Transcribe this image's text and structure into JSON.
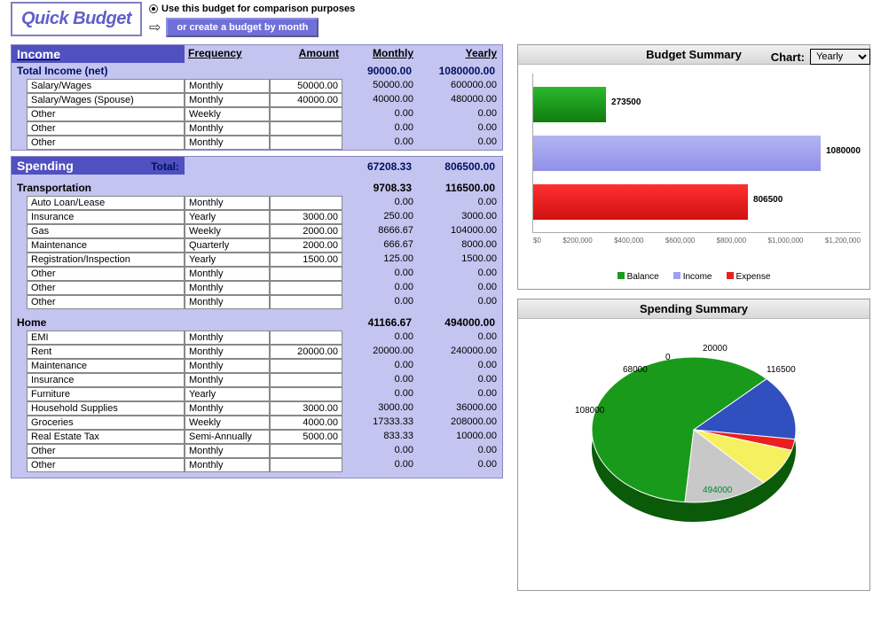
{
  "header": {
    "logo": "Quick Budget",
    "radio_label": "Use this budget for comparison purposes",
    "create_btn": "or create a budget by month",
    "chart_label": "Chart:",
    "chart_options": [
      "Yearly"
    ],
    "chart_selected": "Yearly"
  },
  "income": {
    "title": "Income",
    "col_headers": [
      "Frequency",
      "Amount",
      "Monthly",
      "Yearly"
    ],
    "total_label": "Total Income (net)",
    "total_monthly": "90000.00",
    "total_yearly": "1080000.00",
    "rows": [
      {
        "label": "Salary/Wages",
        "freq": "Monthly",
        "amount": "50000.00",
        "monthly": "50000.00",
        "yearly": "600000.00"
      },
      {
        "label": "Salary/Wages (Spouse)",
        "freq": "Monthly",
        "amount": "40000.00",
        "monthly": "40000.00",
        "yearly": "480000.00"
      },
      {
        "label": "Other",
        "freq": "Weekly",
        "amount": "",
        "monthly": "0.00",
        "yearly": "0.00"
      },
      {
        "label": "Other",
        "freq": "Monthly",
        "amount": "",
        "monthly": "0.00",
        "yearly": "0.00"
      },
      {
        "label": "Other",
        "freq": "Monthly",
        "amount": "",
        "monthly": "0.00",
        "yearly": "0.00"
      }
    ]
  },
  "spending": {
    "title": "Spending",
    "total_label": "Total:",
    "total_monthly": "67208.33",
    "total_yearly": "806500.00",
    "categories": [
      {
        "name": "Transportation",
        "monthly": "9708.33",
        "yearly": "116500.00",
        "rows": [
          {
            "label": "Auto Loan/Lease",
            "freq": "Monthly",
            "amount": "",
            "monthly": "0.00",
            "yearly": "0.00"
          },
          {
            "label": "Insurance",
            "freq": "Yearly",
            "amount": "3000.00",
            "monthly": "250.00",
            "yearly": "3000.00"
          },
          {
            "label": "Gas",
            "freq": "Weekly",
            "amount": "2000.00",
            "monthly": "8666.67",
            "yearly": "104000.00"
          },
          {
            "label": "Maintenance",
            "freq": "Quarterly",
            "amount": "2000.00",
            "monthly": "666.67",
            "yearly": "8000.00"
          },
          {
            "label": "Registration/Inspection",
            "freq": "Yearly",
            "amount": "1500.00",
            "monthly": "125.00",
            "yearly": "1500.00"
          },
          {
            "label": "Other",
            "freq": "Monthly",
            "amount": "",
            "monthly": "0.00",
            "yearly": "0.00"
          },
          {
            "label": "Other",
            "freq": "Monthly",
            "amount": "",
            "monthly": "0.00",
            "yearly": "0.00"
          },
          {
            "label": "Other",
            "freq": "Monthly",
            "amount": "",
            "monthly": "0.00",
            "yearly": "0.00"
          }
        ]
      },
      {
        "name": "Home",
        "monthly": "41166.67",
        "yearly": "494000.00",
        "rows": [
          {
            "label": "EMI",
            "freq": "Monthly",
            "amount": "",
            "monthly": "0.00",
            "yearly": "0.00"
          },
          {
            "label": "Rent",
            "freq": "Monthly",
            "amount": "20000.00",
            "monthly": "20000.00",
            "yearly": "240000.00"
          },
          {
            "label": "Maintenance",
            "freq": "Monthly",
            "amount": "",
            "monthly": "0.00",
            "yearly": "0.00"
          },
          {
            "label": "Insurance",
            "freq": "Monthly",
            "amount": "",
            "monthly": "0.00",
            "yearly": "0.00"
          },
          {
            "label": "Furniture",
            "freq": "Yearly",
            "amount": "",
            "monthly": "0.00",
            "yearly": "0.00"
          },
          {
            "label": "Household Supplies",
            "freq": "Monthly",
            "amount": "3000.00",
            "monthly": "3000.00",
            "yearly": "36000.00"
          },
          {
            "label": "Groceries",
            "freq": "Weekly",
            "amount": "4000.00",
            "monthly": "17333.33",
            "yearly": "208000.00"
          },
          {
            "label": "Real Estate Tax",
            "freq": "Semi-Annually",
            "amount": "5000.00",
            "monthly": "833.33",
            "yearly": "10000.00"
          },
          {
            "label": "Other",
            "freq": "Monthly",
            "amount": "",
            "monthly": "0.00",
            "yearly": "0.00"
          },
          {
            "label": "Other",
            "freq": "Monthly",
            "amount": "",
            "monthly": "0.00",
            "yearly": "0.00"
          }
        ]
      }
    ]
  },
  "budget_chart": {
    "title": "Budget Summary",
    "max": 1200000,
    "bars": [
      {
        "label": "273500",
        "value": 273500,
        "color": "#1a9a1a",
        "class": "bar-g"
      },
      {
        "label": "1080000",
        "value": 1080000,
        "color": "#a0a0f0",
        "class": "bar-b"
      },
      {
        "label": "806500",
        "value": 806500,
        "color": "#e82020",
        "class": "bar-r"
      }
    ],
    "xticks": [
      "$0",
      "$200,000",
      "$400,000",
      "$600,000",
      "$800,000",
      "$1,000,000",
      "$1,200,000"
    ],
    "legend": [
      {
        "label": "Balance",
        "color": "#1a9a1a"
      },
      {
        "label": "Income",
        "color": "#a0a0f0"
      },
      {
        "label": "Expense",
        "color": "#e82020"
      }
    ]
  },
  "spending_chart": {
    "title": "Spending Summary",
    "slices": [
      {
        "label": "494000",
        "value": 494000,
        "color": "#1a9a1a"
      },
      {
        "label": "116500",
        "value": 116500,
        "color": "#3050c0"
      },
      {
        "label": "20000",
        "value": 20000,
        "color": "#e82020"
      },
      {
        "label": "0",
        "value": 0,
        "color": "#ffa030"
      },
      {
        "label": "68000",
        "value": 68000,
        "color": "#f5f060"
      },
      {
        "label": "108000",
        "value": 108000,
        "color": "#c8c8c8"
      }
    ]
  }
}
